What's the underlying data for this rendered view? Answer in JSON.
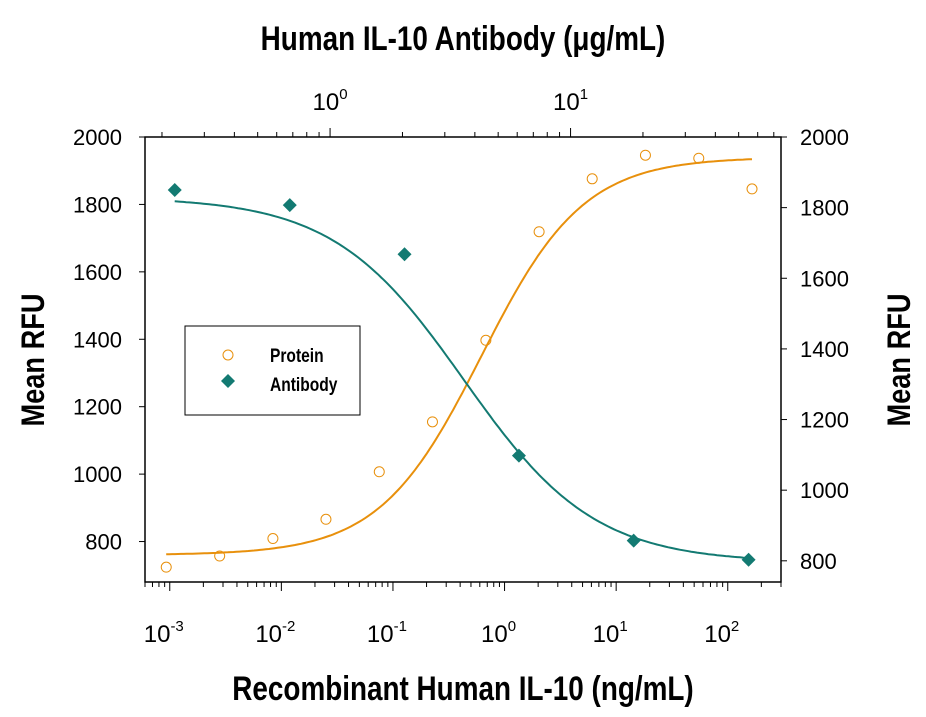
{
  "chart_data": {
    "type": "scatter",
    "title": "Human IL-10 Antibody (μg/mL)",
    "xlabel": "Recombinant Human IL-10 (ng/mL)",
    "ylabel": "Mean RFU",
    "ylabel_right": "Mean RFU",
    "x_scale": "log",
    "xlim": [
      0.0006,
      300
    ],
    "x_ticks": [
      {
        "base": "10",
        "exp": "-3",
        "value": 0.001
      },
      {
        "base": "10",
        "exp": "-2",
        "value": 0.01
      },
      {
        "base": "10",
        "exp": "-1",
        "value": 0.1
      },
      {
        "base": "10",
        "exp": "0",
        "value": 1
      },
      {
        "base": "10",
        "exp": "1",
        "value": 10
      },
      {
        "base": "10",
        "exp": "2",
        "value": 100
      }
    ],
    "x2_scale": "log",
    "x2lim": [
      0.17,
      75
    ],
    "x2_ticks": [
      {
        "base": "10",
        "exp": "0",
        "value": 1
      },
      {
        "base": "10",
        "exp": "1",
        "value": 10
      }
    ],
    "ylim": [
      680,
      2000
    ],
    "y_ticks": [
      800,
      1000,
      1200,
      1400,
      1600,
      1800,
      2000
    ],
    "y2lim": [
      740,
      2000
    ],
    "y2_ticks": [
      800,
      1000,
      1200,
      1400,
      1600,
      1800,
      2000
    ],
    "grid": false,
    "legend_position": "middle-left",
    "series": [
      {
        "name": "Protein",
        "axis": "bottom-left",
        "marker": "open-circle",
        "color": "#e8900c",
        "x": [
          0.00093,
          0.0028,
          0.0084,
          0.0251,
          0.0754,
          0.226,
          0.68,
          2.04,
          6.1,
          18.3,
          55,
          165
        ],
        "y": [
          724,
          757,
          809,
          866,
          1007,
          1155,
          1397,
          1719,
          1876,
          1946,
          1937,
          1846
        ],
        "fit": {
          "bottom": 760,
          "top": 1940,
          "ec50": 0.62,
          "hill": 0.95
        }
      },
      {
        "name": "Antibody",
        "axis": "top-right",
        "marker": "filled-diamond",
        "color": "#137a72",
        "x": [
          0.226,
          0.68,
          2.04,
          6.1,
          18.3,
          55
        ],
        "y": [
          1850,
          1807,
          1668,
          1098,
          857,
          803
        ],
        "fit": {
          "bottom": 795,
          "top": 1830,
          "ec50": 3.6,
          "hill": 1.6
        }
      }
    ]
  }
}
